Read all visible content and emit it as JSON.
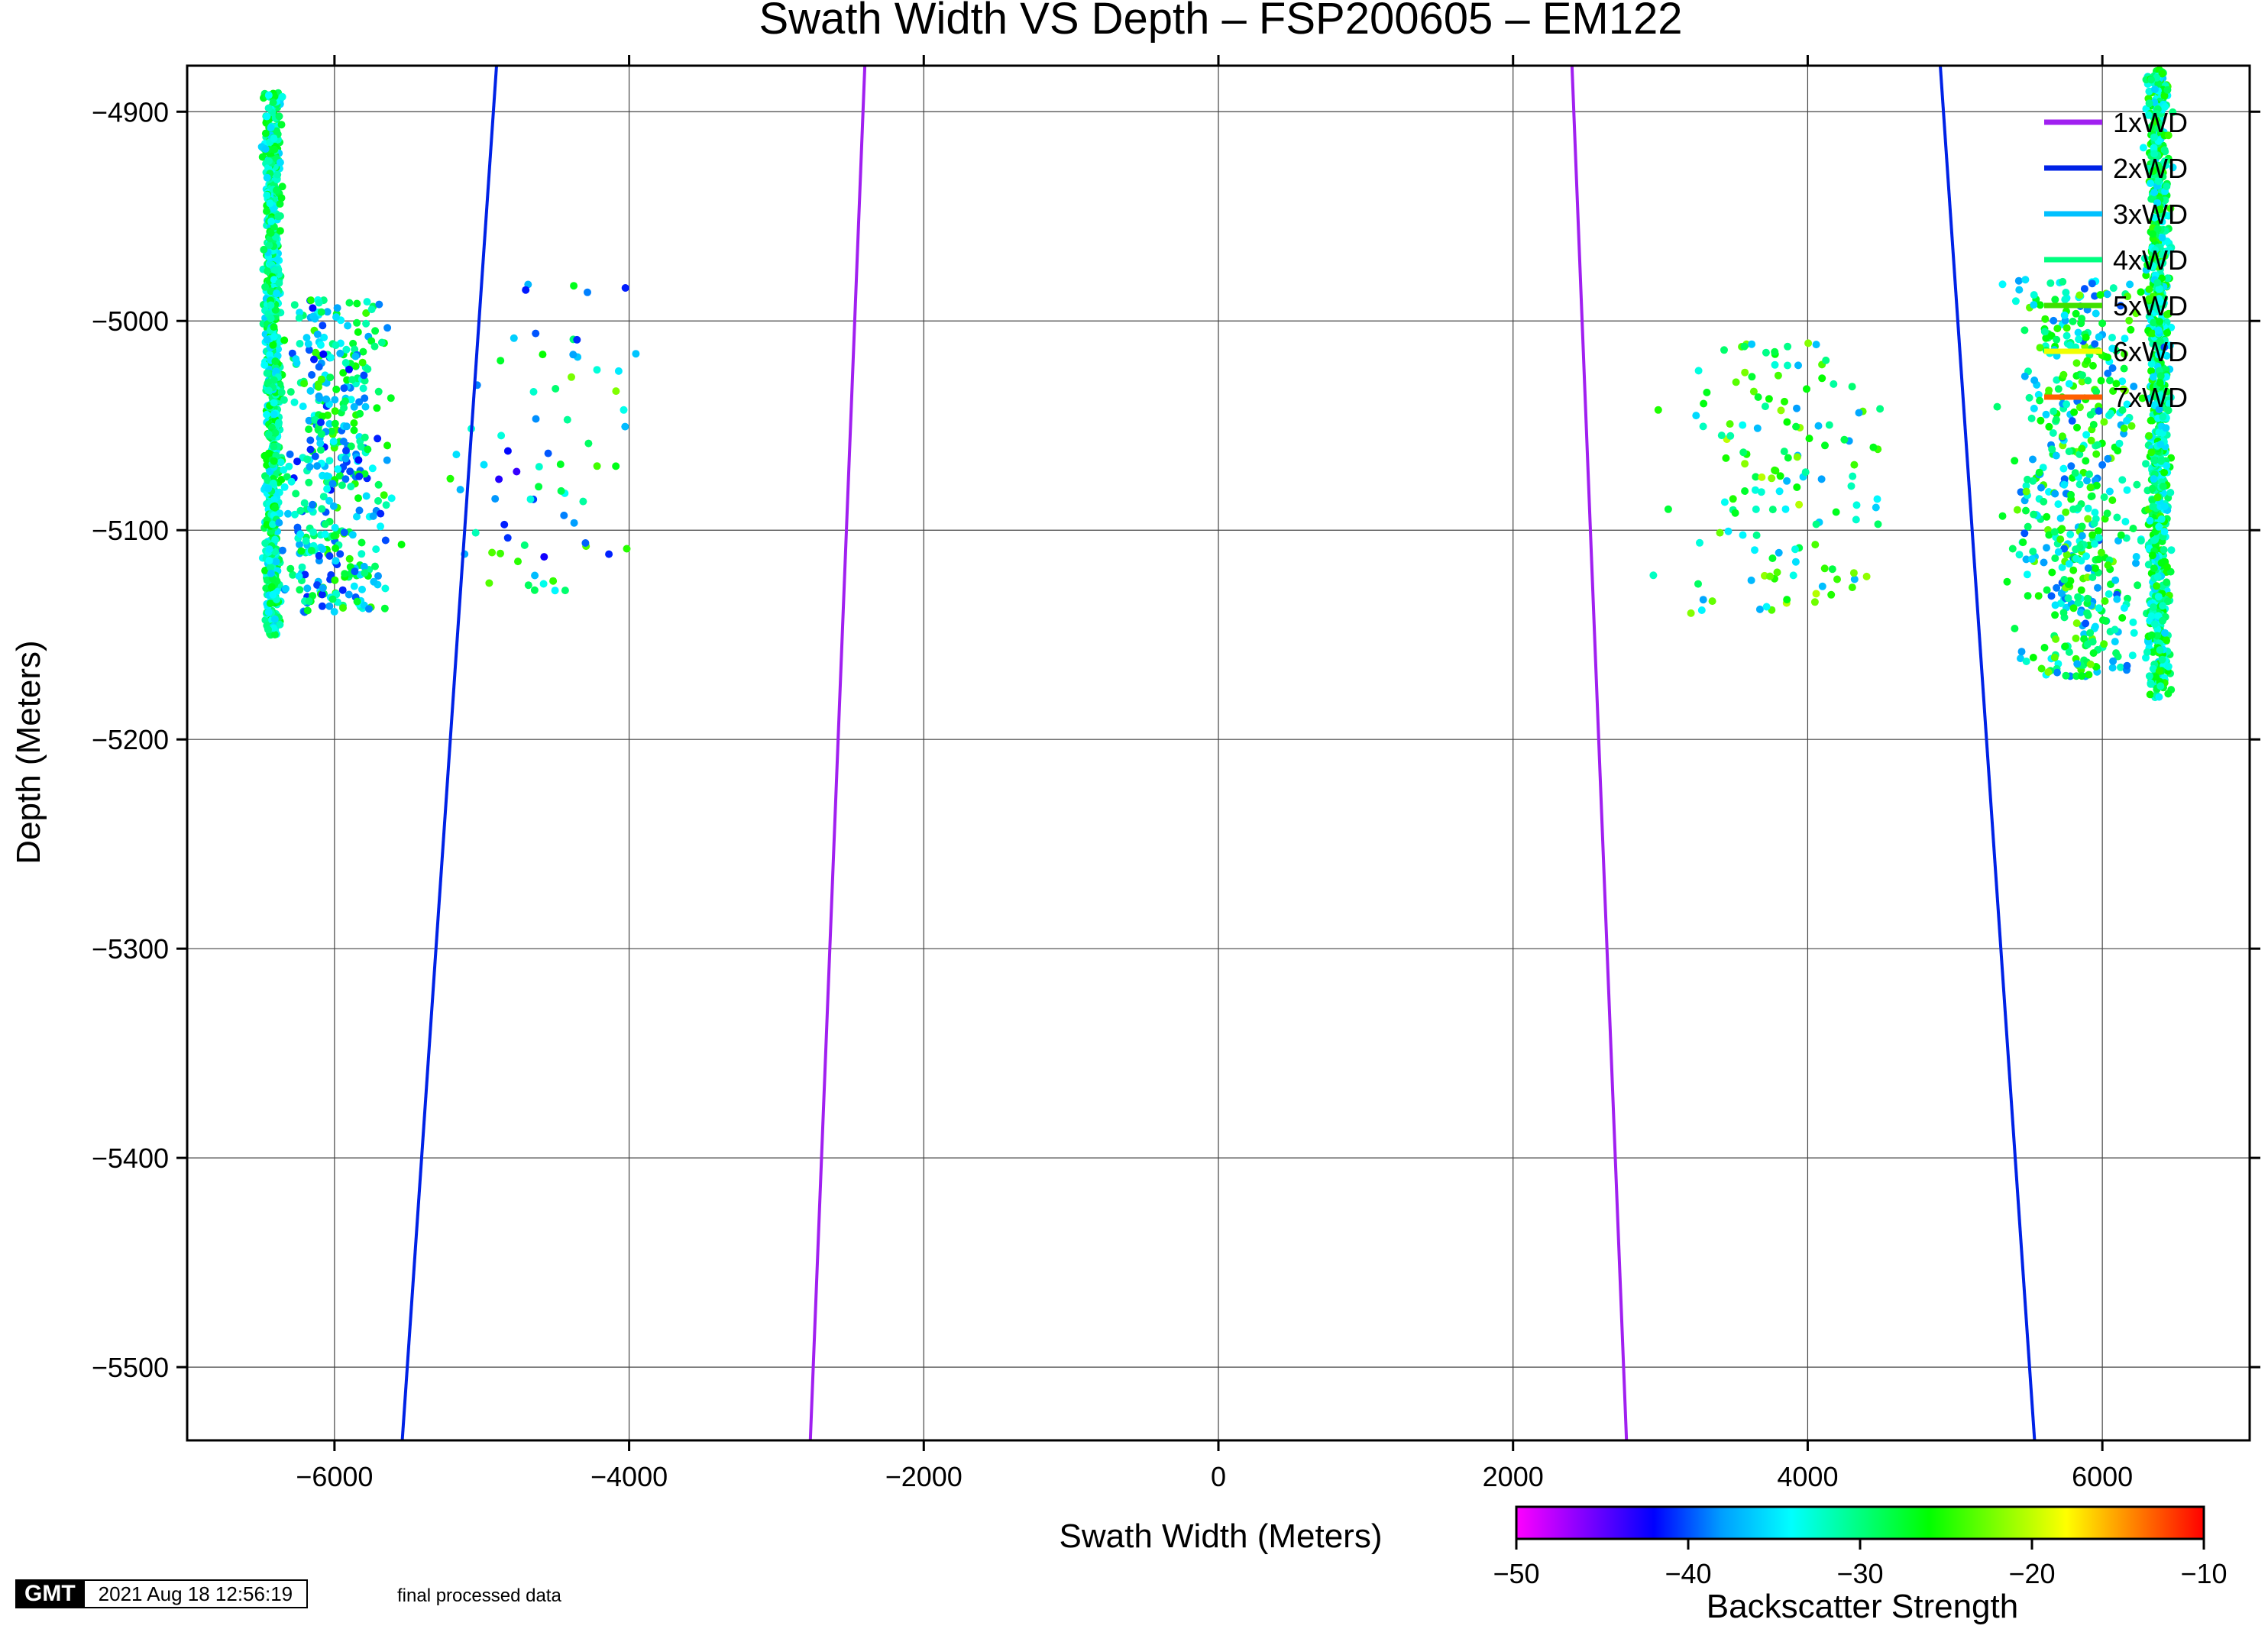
{
  "chart_data": {
    "type": "scatter",
    "title": "Swath Width VS Depth – FSP200605 – EM122",
    "xlabel": "Swath Width (Meters)",
    "ylabel": "Depth (Meters)",
    "xlim": [
      -7000,
      7000
    ],
    "ylim": [
      -5535,
      -4878
    ],
    "xticks": [
      -6000,
      -4000,
      -2000,
      0,
      2000,
      4000,
      6000
    ],
    "xtick_labels": [
      "−6000",
      "−4000",
      "−2000",
      "0",
      "2000",
      "4000",
      "6000"
    ],
    "yticks": [
      -4900,
      -5000,
      -5100,
      -5200,
      -5300,
      -5400,
      -5500
    ],
    "ytick_labels": [
      "−4900",
      "−5000",
      "−5100",
      "−5200",
      "−5300",
      "−5400",
      "−5500"
    ],
    "grid": true,
    "legend_position": "top-right",
    "reference_lines": [
      {
        "name": "1xWD",
        "color": "#a020f0",
        "left": [
          [
            -2400,
            -4878
          ],
          [
            -2770,
            -5535
          ]
        ],
        "right": [
          [
            2400,
            -4878
          ],
          [
            2770,
            -5535
          ]
        ]
      },
      {
        "name": "2xWD",
        "color": "#0022e6",
        "left": [
          [
            -4900,
            -4878
          ],
          [
            -5540,
            -5535
          ]
        ],
        "right": [
          [
            4900,
            -4878
          ],
          [
            5540,
            -5535
          ]
        ]
      },
      {
        "name": "3xWD",
        "color": "#00c0ff"
      },
      {
        "name": "4xWD",
        "color": "#00ff80"
      },
      {
        "name": "5xWD",
        "color": "#40e000"
      },
      {
        "name": "6xWD",
        "color": "#f0ff00"
      },
      {
        "name": "7xWD",
        "color": "#ff6000"
      }
    ],
    "scatter_clusters": [
      {
        "name": "port-dense",
        "x_center": -6420,
        "x_spread": 80,
        "y_min": -5150,
        "y_max": -4890,
        "count": 900,
        "bs_range": [
          -36,
          -26
        ]
      },
      {
        "name": "port-spread",
        "x_center": -6000,
        "x_spread": 550,
        "y_min": -5140,
        "y_max": -4990,
        "count": 420,
        "bs_range": [
          -42,
          -24
        ]
      },
      {
        "name": "port-sparse",
        "x_center": -4600,
        "x_spread": 900,
        "y_min": -5130,
        "y_max": -4980,
        "count": 70,
        "bs_range": [
          -44,
          -22
        ]
      },
      {
        "name": "stbd-dense",
        "x_center": 6380,
        "x_spread": 110,
        "y_min": -5180,
        "y_max": -4880,
        "count": 900,
        "bs_range": [
          -36,
          -24
        ]
      },
      {
        "name": "stbd-spread",
        "x_center": 5850,
        "x_spread": 650,
        "y_min": -5170,
        "y_max": -4980,
        "count": 500,
        "bs_range": [
          -40,
          -22
        ]
      },
      {
        "name": "stbd-sparse",
        "x_center": 3800,
        "x_spread": 1100,
        "y_min": -5140,
        "y_max": -5010,
        "count": 140,
        "bs_range": [
          -38,
          -20
        ]
      }
    ],
    "colorbar": {
      "label": "Backscatter Strength",
      "range": [
        -50,
        -10
      ],
      "ticks": [
        -50,
        -40,
        -30,
        -20,
        -10
      ],
      "tick_labels": [
        "−50",
        "−40",
        "−30",
        "−20",
        "−10"
      ],
      "colors": [
        "#ff00ff",
        "#8000ff",
        "#0000ff",
        "#00a0ff",
        "#00ffff",
        "#00ff80",
        "#00ff00",
        "#80ff00",
        "#ffff00",
        "#ff8000",
        "#ff0000"
      ]
    }
  },
  "footer": {
    "logo": "GMT",
    "timestamp": "2021 Aug 18 12:56:19",
    "note": "final processed data"
  }
}
